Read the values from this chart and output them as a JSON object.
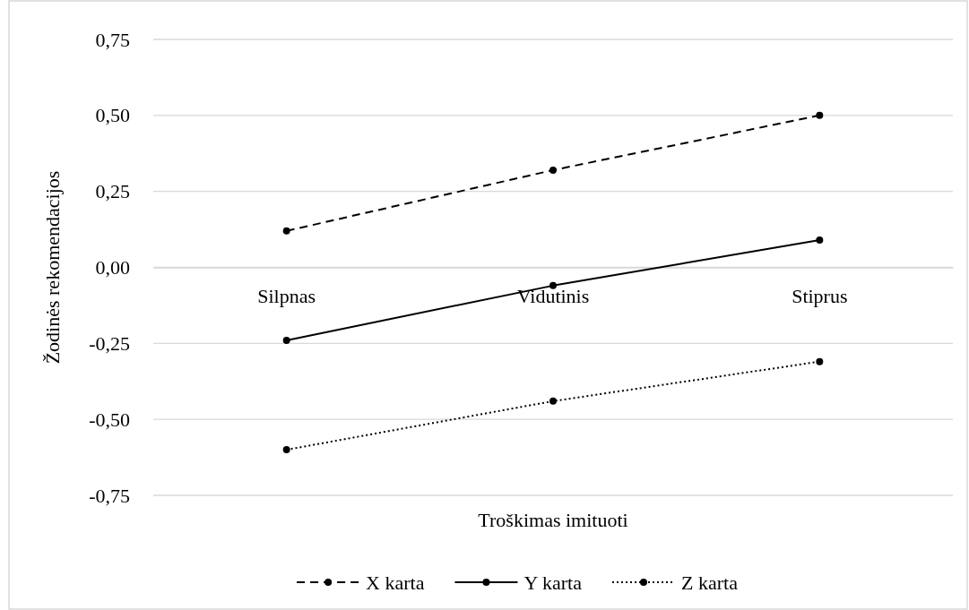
{
  "chart_data": {
    "type": "line",
    "xlabel": "Troškimas imituoti",
    "ylabel": "Žodinės rekomendacijos",
    "categories": [
      "Silpnas",
      "Vidutinis",
      "Stiprus"
    ],
    "series": [
      {
        "name": "X karta",
        "color": "#000000",
        "line_style": "dashed",
        "values": [
          0.12,
          0.32,
          0.5
        ]
      },
      {
        "name": "Y karta",
        "color": "#000000",
        "line_style": "solid",
        "values": [
          -0.24,
          -0.06,
          0.09
        ]
      },
      {
        "name": "Z karta",
        "color": "#000000",
        "line_style": "dotted",
        "values": [
          -0.6,
          -0.44,
          -0.31
        ]
      }
    ],
    "ylim": [
      -0.75,
      0.75
    ],
    "yticks": [
      {
        "value": -0.75,
        "label": "-0,75"
      },
      {
        "value": -0.5,
        "label": "-0,50"
      },
      {
        "value": -0.25,
        "label": "-0,25"
      },
      {
        "value": 0,
        "label": "0,00"
      },
      {
        "value": 0.25,
        "label": "0,25"
      },
      {
        "value": 0.5,
        "label": "0,50"
      },
      {
        "value": 0.75,
        "label": "0,75"
      }
    ],
    "grid": "y",
    "legend": "bottom",
    "marker": "circle"
  }
}
